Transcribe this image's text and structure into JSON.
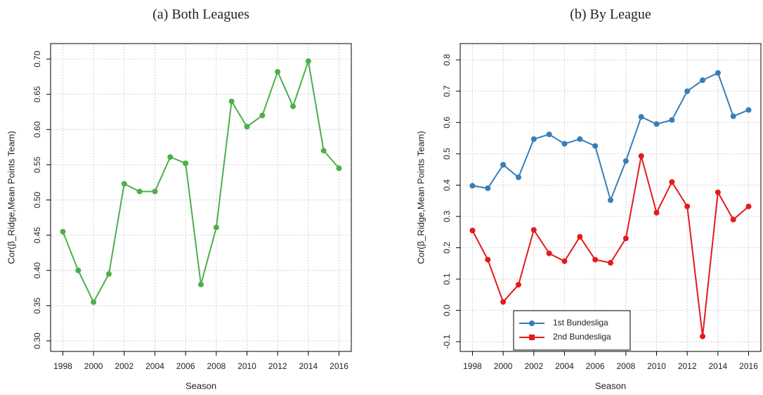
{
  "chart_data": [
    {
      "type": "line",
      "title": "(a) Both Leagues",
      "xlabel": "Season",
      "ylabel": "Cor(β_Ridge,Mean Points Team)",
      "x": [
        1998,
        1999,
        2000,
        2001,
        2002,
        2003,
        2004,
        2005,
        2006,
        2007,
        2008,
        2009,
        2010,
        2011,
        2012,
        2013,
        2014,
        2015,
        2016
      ],
      "series": [
        {
          "name": null,
          "color": "#4daf4a",
          "values": [
            0.455,
            0.4,
            0.355,
            0.395,
            0.523,
            0.512,
            0.512,
            0.561,
            0.552,
            0.38,
            0.461,
            0.64,
            0.604,
            0.62,
            0.682,
            0.633,
            0.697,
            0.57,
            0.545
          ]
        }
      ],
      "xlim": [
        1997.2,
        2016.8
      ],
      "xticks": [
        1998,
        2000,
        2002,
        2004,
        2006,
        2008,
        2010,
        2012,
        2014,
        2016
      ],
      "ylim": [
        0.285,
        0.722
      ],
      "yticks": [
        {
          "value": 0.3,
          "label": "0.30"
        },
        0.35,
        {
          "value": 0.4,
          "label": "0.40"
        },
        0.45,
        {
          "value": 0.5,
          "label": "0.50"
        },
        0.55,
        {
          "value": 0.6,
          "label": "0.60"
        },
        0.65,
        {
          "value": 0.7,
          "label": "0.70"
        }
      ],
      "grid": true
    },
    {
      "type": "line",
      "title": "(b) By League",
      "xlabel": "Season",
      "ylabel": "Cor(β_Ridge,Mean Points Team)",
      "x": [
        1998,
        1999,
        2000,
        2001,
        2002,
        2003,
        2004,
        2005,
        2006,
        2007,
        2008,
        2009,
        2010,
        2011,
        2012,
        2013,
        2014,
        2015,
        2016
      ],
      "series": [
        {
          "name": "1st Bundesliga",
          "color": "#377eb8",
          "values": [
            0.398,
            0.39,
            0.465,
            0.425,
            0.547,
            0.562,
            0.532,
            0.547,
            0.525,
            0.352,
            0.477,
            0.618,
            0.595,
            0.608,
            0.7,
            0.735,
            0.758,
            0.62,
            0.64
          ]
        },
        {
          "name": "2nd Bundesliga",
          "color": "#e41a1c",
          "values": [
            0.255,
            0.162,
            0.027,
            0.082,
            0.257,
            0.182,
            0.157,
            0.235,
            0.162,
            0.152,
            0.23,
            0.493,
            0.312,
            0.41,
            0.332,
            -0.083,
            0.377,
            0.29,
            0.332
          ]
        }
      ],
      "xlim": [
        1997.2,
        2016.8
      ],
      "xticks": [
        1998,
        2000,
        2002,
        2004,
        2006,
        2008,
        2010,
        2012,
        2014,
        2016
      ],
      "ylim": [
        -0.131,
        0.852
      ],
      "yticks": [
        -0.1,
        {
          "value": 0,
          "label": "0.0"
        },
        0.1,
        0.2,
        0.3,
        0.4,
        0.5,
        0.6,
        0.7,
        0.8
      ],
      "grid": true,
      "legend": "bottom"
    }
  ]
}
